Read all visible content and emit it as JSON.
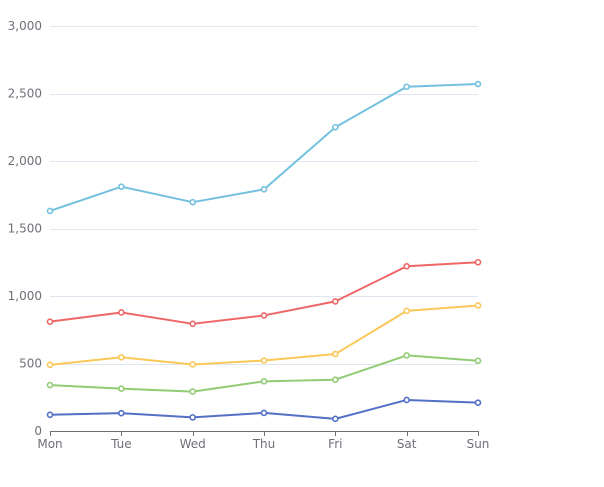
{
  "chart_data": {
    "type": "line",
    "categories": [
      "Mon",
      "Tue",
      "Wed",
      "Thu",
      "Fri",
      "Sat",
      "Sun"
    ],
    "ylim": [
      0,
      3000
    ],
    "yticks": [
      "0",
      "500",
      "1,000",
      "1,500",
      "2,000",
      "2,500",
      "3,000"
    ],
    "ytick_values": [
      0,
      500,
      1000,
      1500,
      2000,
      2500,
      3000
    ],
    "grid": true,
    "legend": "none",
    "series": [
      {
        "values": [
          120,
          132,
          101,
          134,
          90,
          230,
          210
        ],
        "color": "#5470C6"
      },
      {
        "values": [
          220,
          182,
          191,
          234,
          290,
          330,
          310
        ],
        "color": "#91CC75"
      },
      {
        "values": [
          150,
          232,
          201,
          154,
          190,
          330,
          410
        ],
        "color": "#FAC858"
      },
      {
        "values": [
          320,
          332,
          301,
          334,
          390,
          330,
          320
        ],
        "color": "#EE6666"
      },
      {
        "values": [
          820,
          932,
          901,
          934,
          1290,
          1330,
          1320
        ],
        "color": "#73C0DE"
      }
    ],
    "stacked": true
  }
}
